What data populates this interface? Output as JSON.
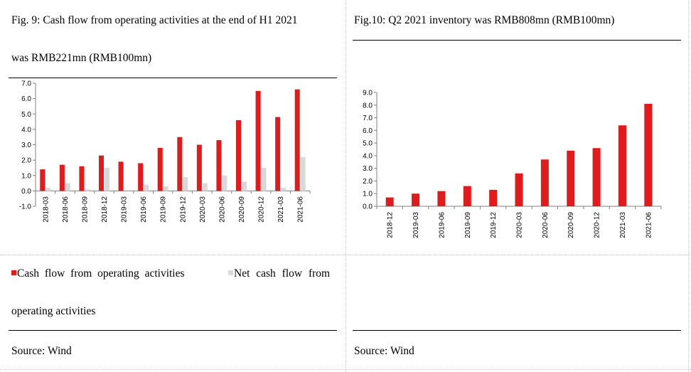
{
  "left": {
    "caption_line1": "Fig. 9: Cash flow from operating activities at the end of H1 2021",
    "caption_line2": "was RMB221mn (RMB100mn)",
    "legend_series1": "Cash flow from operating activities",
    "legend_series2_part1": "Net cash flow from",
    "legend_series2_part2": "operating activities",
    "source": "Source: Wind"
  },
  "right": {
    "caption": "Fig.10: Q2 2021 inventory was RMB808mn (RMB100mn)",
    "source": "Source: Wind"
  },
  "colors": {
    "red": "#E31A1C",
    "gray": "#D9D9D9"
  },
  "chart_data": [
    {
      "type": "bar",
      "categories": [
        "2018-03",
        "2018-06",
        "2018-09",
        "2018-12",
        "2019-03",
        "2019-06",
        "2019-09",
        "2019-12",
        "2020-03",
        "2020-06",
        "2020-09",
        "2020-12",
        "2021-03",
        "2021-06"
      ],
      "series": [
        {
          "name": "Cash flow from operating activities",
          "color": "#E31A1C",
          "values": [
            1.4,
            1.7,
            1.6,
            2.3,
            1.9,
            1.8,
            2.8,
            3.5,
            3.0,
            3.3,
            4.6,
            6.5,
            4.8,
            6.6
          ]
        },
        {
          "name": "Net cash flow from operating activities",
          "color": "#D9D9D9",
          "values": [
            0.2,
            0.5,
            0.1,
            1.5,
            0.0,
            0.4,
            0.3,
            0.9,
            0.5,
            1.0,
            0.6,
            1.5,
            0.2,
            2.2
          ]
        }
      ],
      "ylim": [
        -1.0,
        7.0
      ],
      "yticks": [
        "-1.0",
        "0.0",
        "1.0",
        "2.0",
        "3.0",
        "4.0",
        "5.0",
        "6.0",
        "7.0"
      ],
      "grid": false,
      "legend": "bottom"
    },
    {
      "type": "bar",
      "categories": [
        "2018-12",
        "2019-03",
        "2019-06",
        "2019-09",
        "2019-12",
        "2020-03",
        "2020-06",
        "2020-09",
        "2020-12",
        "2021-03",
        "2021-06"
      ],
      "series": [
        {
          "values": [
            0.7,
            1.0,
            1.2,
            1.6,
            1.3,
            2.6,
            3.7,
            4.4,
            4.6,
            6.4,
            8.1
          ],
          "color": "#E31A1C"
        }
      ],
      "ylim": [
        0.0,
        9.0
      ],
      "yticks": [
        "0.0",
        "1.0",
        "2.0",
        "3.0",
        "4.0",
        "5.0",
        "6.0",
        "7.0",
        "8.0",
        "9.0"
      ],
      "grid": false,
      "legend": "none"
    }
  ]
}
